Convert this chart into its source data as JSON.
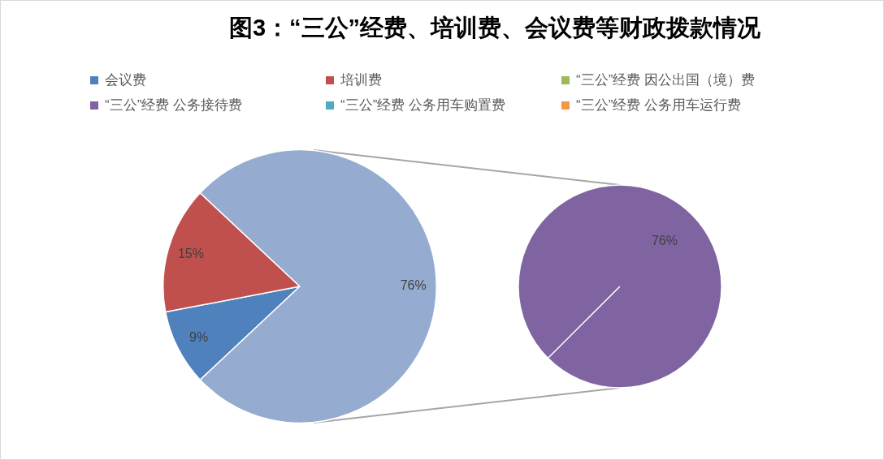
{
  "chart_data": [
    {
      "type": "pie",
      "title": "图3：“三公”经费、培训费、会议费等财政拨款情况",
      "categories": [
        "会议费",
        "培训费",
        null
      ],
      "values": [
        9,
        15,
        76
      ],
      "colors": [
        "#4f81bd",
        "#c0504d",
        "#95acd0"
      ],
      "value_labels": [
        "9%",
        "15%",
        "76%"
      ],
      "legend": "top"
    },
    {
      "type": "pie",
      "categories": [
        "“三公”经费 因公出国（境）费",
        "“三公”经费 公务接待费",
        "“三公”经费 公务用车购置费",
        "“三公”经费 公务用车运行费"
      ],
      "values": [
        0,
        76,
        0,
        0
      ],
      "colors": [
        "#9bbb59",
        "#8064a2",
        "#4bacc6",
        "#f79646"
      ],
      "value_labels": [
        null,
        "76%",
        null,
        null
      ],
      "legend": "top"
    }
  ]
}
